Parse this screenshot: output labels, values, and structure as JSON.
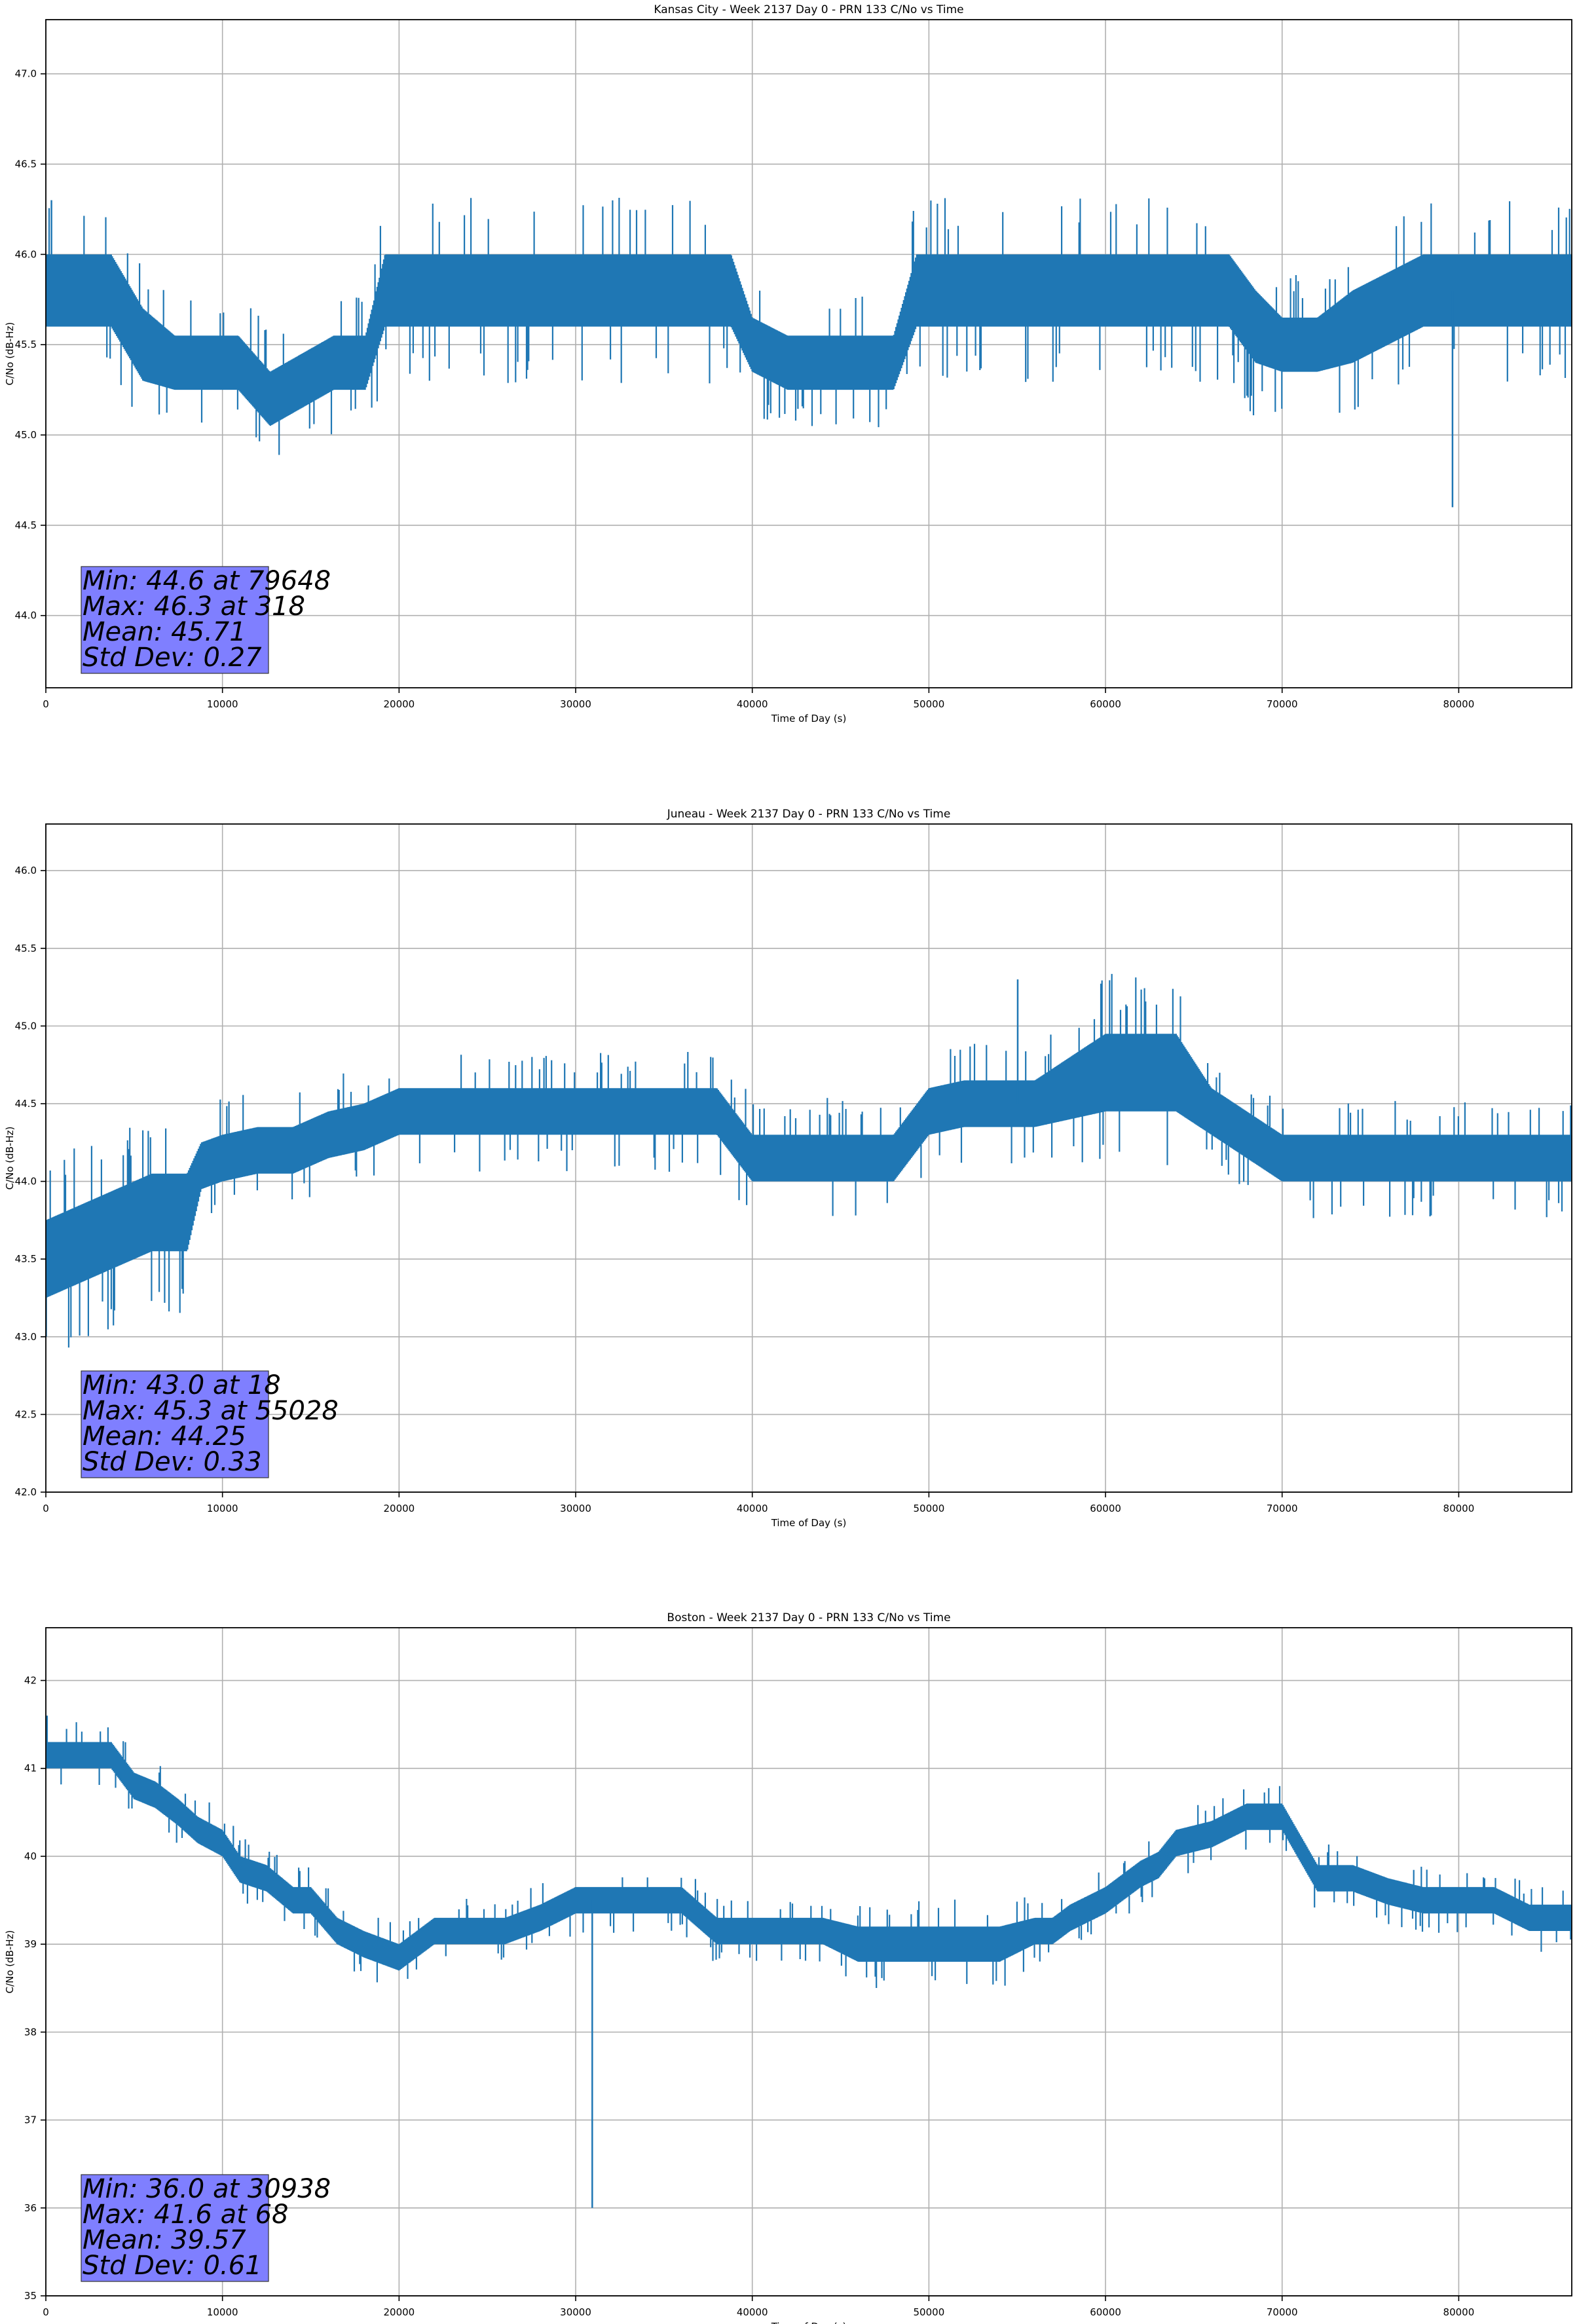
{
  "colors": {
    "series": "#1f77b4",
    "grid": "#b0b0b0",
    "stats_box": "#7f7fff",
    "axes": "#000000"
  },
  "chart_data": [
    {
      "type": "line",
      "title": "Kansas City - Week 2137 Day 0 - PRN 133 C/No vs Time",
      "xlabel": "Time of Day (s)",
      "ylabel": "C/No (dB-Hz)",
      "xlim": [
        0,
        86400
      ],
      "ylim": [
        43.6,
        47.3
      ],
      "xticks": [
        0,
        10000,
        20000,
        30000,
        40000,
        50000,
        60000,
        70000,
        80000
      ],
      "yticks": [
        44.0,
        44.5,
        45.0,
        45.5,
        46.0,
        46.5,
        47.0
      ],
      "ytick_decimals": 1,
      "grid": true,
      "stats": [
        "Min: 44.6 at 79648",
        "Max: 46.3 at 318",
        "Mean: 45.71",
        "Std Dev: 0.27"
      ],
      "series": [
        {
          "x": [
            0,
            1900,
            3700,
            5500,
            7300,
            9100,
            10900,
            12700,
            14500,
            16300,
            18100,
            19200,
            21000,
            23000,
            25000,
            27000,
            29000,
            31000,
            33000,
            35000,
            37000,
            38800,
            40000,
            42000,
            44000,
            46000,
            48000,
            49300,
            51000,
            53000,
            55000,
            57000,
            59000,
            61000,
            63000,
            65000,
            67000,
            68500,
            70000,
            72000,
            74000,
            76000,
            78000,
            80000,
            82000,
            84000,
            86400
          ],
          "y": [
            45.8,
            45.8,
            45.8,
            45.5,
            45.4,
            45.4,
            45.4,
            45.2,
            45.3,
            45.4,
            45.4,
            45.8,
            45.8,
            45.8,
            45.8,
            45.8,
            45.8,
            45.8,
            45.8,
            45.8,
            45.8,
            45.8,
            45.5,
            45.4,
            45.4,
            45.4,
            45.4,
            45.8,
            45.8,
            45.8,
            45.8,
            45.8,
            45.8,
            45.8,
            45.8,
            45.8,
            45.8,
            45.6,
            45.5,
            45.5,
            45.6,
            45.7,
            45.8,
            45.8,
            45.8,
            45.8,
            45.8
          ],
          "spread": [
            0.2,
            0.2,
            0.2,
            0.2,
            0.15,
            0.15,
            0.15,
            0.15,
            0.15,
            0.15,
            0.15,
            0.2,
            0.2,
            0.2,
            0.2,
            0.2,
            0.2,
            0.2,
            0.2,
            0.2,
            0.2,
            0.2,
            0.15,
            0.15,
            0.15,
            0.15,
            0.15,
            0.2,
            0.2,
            0.2,
            0.2,
            0.2,
            0.2,
            0.2,
            0.2,
            0.2,
            0.2,
            0.2,
            0.15,
            0.15,
            0.2,
            0.2,
            0.2,
            0.2,
            0.2,
            0.2,
            0.2
          ]
        }
      ]
    },
    {
      "type": "line",
      "title": "Juneau - Week 2137 Day 0 - PRN 133 C/No vs Time",
      "xlabel": "Time of Day (s)",
      "ylabel": "C/No (dB-Hz)",
      "xlim": [
        0,
        86400
      ],
      "ylim": [
        42.0,
        46.3
      ],
      "xticks": [
        0,
        10000,
        20000,
        30000,
        40000,
        50000,
        60000,
        70000,
        80000
      ],
      "yticks": [
        42.0,
        42.5,
        43.0,
        43.5,
        44.0,
        44.5,
        45.0,
        45.5,
        46.0
      ],
      "ytick_decimals": 1,
      "grid": true,
      "stats": [
        "Min: 43.0 at 18",
        "Max: 45.3 at 55028",
        "Mean: 44.25",
        "Std Dev: 0.33"
      ],
      "series": [
        {
          "x": [
            0,
            2000,
            4000,
            6000,
            8000,
            8800,
            10000,
            12000,
            14000,
            16000,
            18000,
            20000,
            22000,
            24000,
            26000,
            28000,
            30000,
            32000,
            34000,
            36000,
            38000,
            40000,
            42000,
            44000,
            46000,
            48000,
            50000,
            52000,
            54000,
            56000,
            58000,
            60000,
            62000,
            64000,
            66000,
            68000,
            70000,
            72000,
            74000,
            76000,
            78000,
            80000,
            82000,
            84000,
            86400
          ],
          "y": [
            43.5,
            43.6,
            43.7,
            43.8,
            43.8,
            44.1,
            44.15,
            44.2,
            44.2,
            44.3,
            44.35,
            44.45,
            44.45,
            44.45,
            44.45,
            44.45,
            44.45,
            44.45,
            44.45,
            44.45,
            44.45,
            44.15,
            44.15,
            44.15,
            44.15,
            44.15,
            44.45,
            44.5,
            44.5,
            44.5,
            44.6,
            44.7,
            44.7,
            44.7,
            44.45,
            44.3,
            44.15,
            44.15,
            44.15,
            44.15,
            44.15,
            44.15,
            44.15,
            44.15,
            44.15
          ],
          "spread": [
            0.25,
            0.25,
            0.25,
            0.25,
            0.25,
            0.15,
            0.15,
            0.15,
            0.15,
            0.15,
            0.15,
            0.15,
            0.15,
            0.15,
            0.15,
            0.15,
            0.15,
            0.15,
            0.15,
            0.15,
            0.15,
            0.15,
            0.15,
            0.15,
            0.15,
            0.15,
            0.15,
            0.15,
            0.15,
            0.15,
            0.2,
            0.25,
            0.25,
            0.25,
            0.15,
            0.15,
            0.15,
            0.15,
            0.15,
            0.15,
            0.15,
            0.15,
            0.15,
            0.15,
            0.15
          ]
        }
      ]
    },
    {
      "type": "line",
      "title": "Boston - Week 2137 Day 0 - PRN 133 C/No vs Time",
      "xlabel": "Time of Day (s)",
      "ylabel": "C/No (dB-Hz)",
      "xlim": [
        0,
        86400
      ],
      "ylim": [
        35.0,
        42.6
      ],
      "xticks": [
        0,
        10000,
        20000,
        30000,
        40000,
        50000,
        60000,
        70000,
        80000
      ],
      "yticks": [
        35,
        36,
        37,
        38,
        39,
        40,
        41,
        42
      ],
      "ytick_decimals": 0,
      "grid": true,
      "stats": [
        "Min: 36.0 at 30938",
        "Max: 41.6 at 68",
        "Mean: 39.57",
        "Std Dev: 0.61"
      ],
      "series": [
        {
          "x": [
            0,
            2000,
            3700,
            5000,
            6200,
            7500,
            8600,
            10000,
            11000,
            12500,
            14000,
            15000,
            16500,
            18000,
            20000,
            22000,
            24000,
            26000,
            28000,
            30000,
            32000,
            34000,
            36000,
            38000,
            40000,
            42000,
            44000,
            46000,
            48000,
            50000,
            52000,
            54000,
            56000,
            57000,
            58000,
            60000,
            62000,
            63000,
            64000,
            66000,
            68000,
            70000,
            72000,
            74000,
            76000,
            78000,
            80000,
            82000,
            84000,
            86400
          ],
          "y": [
            41.15,
            41.15,
            41.15,
            40.8,
            40.7,
            40.5,
            40.3,
            40.15,
            39.85,
            39.75,
            39.5,
            39.5,
            39.15,
            39.0,
            38.85,
            39.15,
            39.15,
            39.15,
            39.3,
            39.5,
            39.5,
            39.5,
            39.5,
            39.15,
            39.15,
            39.15,
            39.15,
            39.0,
            39.0,
            39.0,
            39.0,
            39.0,
            39.15,
            39.15,
            39.3,
            39.5,
            39.8,
            39.9,
            40.15,
            40.25,
            40.45,
            40.45,
            39.75,
            39.75,
            39.6,
            39.5,
            39.5,
            39.5,
            39.3,
            39.3
          ],
          "spread": [
            0.15,
            0.15,
            0.15,
            0.15,
            0.15,
            0.15,
            0.15,
            0.15,
            0.15,
            0.15,
            0.15,
            0.15,
            0.15,
            0.15,
            0.15,
            0.15,
            0.15,
            0.15,
            0.15,
            0.15,
            0.15,
            0.15,
            0.15,
            0.15,
            0.15,
            0.15,
            0.15,
            0.2,
            0.2,
            0.2,
            0.2,
            0.2,
            0.15,
            0.15,
            0.15,
            0.15,
            0.15,
            0.15,
            0.15,
            0.15,
            0.15,
            0.15,
            0.15,
            0.15,
            0.15,
            0.15,
            0.15,
            0.15,
            0.15,
            0.15
          ]
        }
      ]
    }
  ]
}
